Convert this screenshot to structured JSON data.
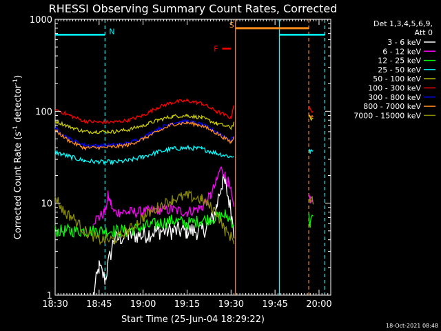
{
  "chart_data": {
    "type": "line",
    "title": "RHESSI Observing Summary Count Rates, Corrected",
    "xlabel": "Start Time (25-Jun-04 18:29:22)",
    "ylabel_main": "Corrected Count Rate (s",
    "ylabel_sup1": "-1",
    "ylabel_mid": " detector",
    "ylabel_sup2": "-1",
    "ylabel_end": ")",
    "yscale": "log",
    "ylim": [
      1,
      1000
    ],
    "xlim_minutes": [
      0,
      94
    ],
    "x_ticks": [
      {
        "t": 0,
        "label": "18:30"
      },
      {
        "t": 15,
        "label": "18:45"
      },
      {
        "t": 30,
        "label": "19:00"
      },
      {
        "t": 45,
        "label": "19:15"
      },
      {
        "t": 60,
        "label": "19:30"
      },
      {
        "t": 75,
        "label": "19:45"
      },
      {
        "t": 90,
        "label": "20:00"
      }
    ],
    "y_ticks": [
      {
        "v": 1,
        "label": "1"
      },
      {
        "v": 10,
        "label": "10"
      },
      {
        "v": 100,
        "label": "100"
      },
      {
        "v": 1000,
        "label": "1000"
      }
    ],
    "legend": {
      "header1": "Det 1,3,4,5,6,9,",
      "header2": "Att 0",
      "placement": "right",
      "entries": [
        {
          "label": "3 - 6 keV",
          "color": "#ffffff"
        },
        {
          "label": "6 - 12 keV",
          "color": "#ff00ff"
        },
        {
          "label": "12 - 25 keV",
          "color": "#00ff00"
        },
        {
          "label": "25 - 50 keV",
          "color": "#00ffff"
        },
        {
          "label": "50 - 100 keV",
          "color": "#cccc00"
        },
        {
          "label": "100 - 300 keV",
          "color": "#ff0000"
        },
        {
          "label": "300 - 800 keV",
          "color": "#0000ff"
        },
        {
          "label": "800 - 7000 keV",
          "color": "#ff8c1a"
        },
        {
          "label": "7000 - 15000 keV",
          "color": "#8b8b00"
        }
      ]
    },
    "annotations": [
      {
        "label": "N",
        "color": "#00ffff",
        "t_start": 0,
        "t_end": 17,
        "level": 680,
        "style": "bar"
      },
      {
        "label": "S",
        "color": "#ff8c1a",
        "t_start": 61.5,
        "t_end": 86.5,
        "level": 800,
        "style": "bar"
      },
      {
        "label": "F",
        "color": "#ff0000",
        "t_start": 57,
        "t_end": 60,
        "level": 480,
        "style": "bar"
      },
      {
        "color": "#00ffff",
        "t_start": 76.5,
        "t_end": 92,
        "level": 680,
        "style": "bar"
      }
    ],
    "vertical_markers": [
      {
        "t": 17,
        "color": "#00ffff",
        "style": "dashed"
      },
      {
        "t": 61.5,
        "color": "#ff8c1a",
        "style": "solid"
      },
      {
        "t": 76.5,
        "color": "#00ffff",
        "style": "solid"
      },
      {
        "t": 86.5,
        "color": "#ff8c1a",
        "style": "dashed"
      },
      {
        "t": 92,
        "color": "#00ffff",
        "style": "dashed"
      }
    ],
    "series": [
      {
        "name": "3 - 6 keV",
        "color": "#ffffff",
        "t": [
          13,
          15,
          17,
          20,
          25,
          30,
          35,
          40,
          45,
          50,
          53,
          55,
          56,
          57,
          58,
          59,
          60,
          61
        ],
        "values": [
          1.0,
          2.0,
          1.5,
          4.0,
          4.5,
          4.5,
          5.0,
          5.0,
          5.0,
          5.0,
          6.0,
          9.0,
          13.0,
          17.0,
          16.0,
          12.0,
          8.0,
          5.0
        ]
      },
      {
        "name": "6 - 12 keV",
        "color": "#ff00ff",
        "t": [
          13,
          15,
          17,
          18,
          19,
          20,
          22,
          25,
          30,
          35,
          40,
          45,
          50,
          53,
          55,
          56,
          57,
          58,
          59,
          60,
          61,
          86.5,
          87,
          88
        ],
        "values": [
          6.5,
          7.0,
          8.0,
          12.0,
          10.0,
          8.0,
          8.0,
          8.0,
          8.0,
          8.5,
          8.5,
          8.0,
          9.0,
          12.0,
          17.0,
          22.0,
          24.0,
          20.0,
          17.0,
          13.0,
          8.0,
          12.0,
          11.0,
          10.0
        ],
        "segments": [
          [
            0,
            20
          ],
          [
            21,
            23
          ]
        ]
      },
      {
        "name": "12 - 25 keV",
        "color": "#00ff00",
        "t": [
          0,
          5,
          10,
          15,
          20,
          25,
          30,
          35,
          40,
          45,
          50,
          55,
          58,
          61,
          86.5,
          87,
          88
        ],
        "values": [
          5.0,
          5.0,
          5.0,
          5.0,
          5.0,
          5.0,
          5.5,
          6.0,
          6.5,
          6.0,
          6.5,
          7.0,
          7.5,
          6.0,
          7.0,
          6.0,
          7.0
        ],
        "segments": [
          [
            0,
            13
          ],
          [
            14,
            16
          ]
        ]
      },
      {
        "name": "25 - 50 keV",
        "color": "#00ffff",
        "t": [
          0,
          5,
          10,
          15,
          20,
          25,
          30,
          35,
          40,
          45,
          50,
          55,
          60,
          61,
          86.5,
          87,
          88
        ],
        "values": [
          36,
          32,
          29,
          28,
          28,
          29,
          32,
          36,
          39,
          40,
          39,
          35,
          32,
          33,
          37,
          36,
          37
        ],
        "segments": [
          [
            0,
            13
          ],
          [
            14,
            16
          ]
        ]
      },
      {
        "name": "50 - 100 keV",
        "color": "#cccc00",
        "t": [
          0,
          5,
          10,
          15,
          20,
          25,
          30,
          35,
          40,
          45,
          50,
          55,
          60,
          61,
          86.5,
          87,
          88
        ],
        "values": [
          78,
          68,
          60,
          60,
          60,
          63,
          70,
          80,
          88,
          90,
          85,
          74,
          66,
          75,
          88,
          85,
          80
        ],
        "segments": [
          [
            0,
            13
          ],
          [
            14,
            16
          ]
        ]
      },
      {
        "name": "100 - 300 keV",
        "color": "#ff0000",
        "t": [
          0,
          5,
          10,
          15,
          20,
          25,
          30,
          35,
          40,
          45,
          50,
          55,
          60,
          61,
          86.5,
          87,
          88
        ],
        "values": [
          105,
          90,
          78,
          76,
          76,
          80,
          90,
          110,
          125,
          130,
          122,
          100,
          85,
          120,
          110,
          105,
          100
        ],
        "segments": [
          [
            0,
            13
          ],
          [
            14,
            16
          ]
        ]
      },
      {
        "name": "300 - 800 keV",
        "color": "#0000ff",
        "t": [
          0,
          5,
          10,
          15,
          20,
          25,
          30,
          35,
          40,
          45,
          50,
          55,
          60,
          61
        ],
        "values": [
          65,
          50,
          43,
          42,
          43,
          45,
          52,
          64,
          75,
          78,
          72,
          60,
          48,
          55
        ]
      },
      {
        "name": "800 - 7000 keV",
        "color": "#ff8c1a",
        "t": [
          0,
          5,
          10,
          15,
          20,
          25,
          30,
          35,
          40,
          45,
          50,
          55,
          60,
          61,
          86.5,
          87,
          88
        ],
        "values": [
          62,
          47,
          40,
          40,
          41,
          43,
          50,
          60,
          72,
          75,
          70,
          58,
          46,
          52,
          95,
          90,
          85
        ],
        "segments": [
          [
            0,
            13
          ],
          [
            14,
            16
          ]
        ]
      },
      {
        "name": "7000 - 15000 keV",
        "color": "#8b8b00",
        "t": [
          0,
          3,
          6,
          10,
          15,
          20,
          25,
          30,
          35,
          40,
          45,
          50,
          55,
          58,
          61,
          86.5,
          87,
          88
        ],
        "values": [
          12.0,
          8.0,
          7.0,
          5.0,
          4.0,
          4.0,
          5.0,
          7.0,
          9.0,
          11.0,
          12.0,
          11.0,
          8.0,
          5.0,
          4.0,
          11.0,
          10.0,
          11.0
        ],
        "segments": [
          [
            0,
            14
          ],
          [
            15,
            17
          ]
        ]
      }
    ]
  },
  "footer": {
    "date_stamp": "18-Oct-2021 08:48"
  }
}
